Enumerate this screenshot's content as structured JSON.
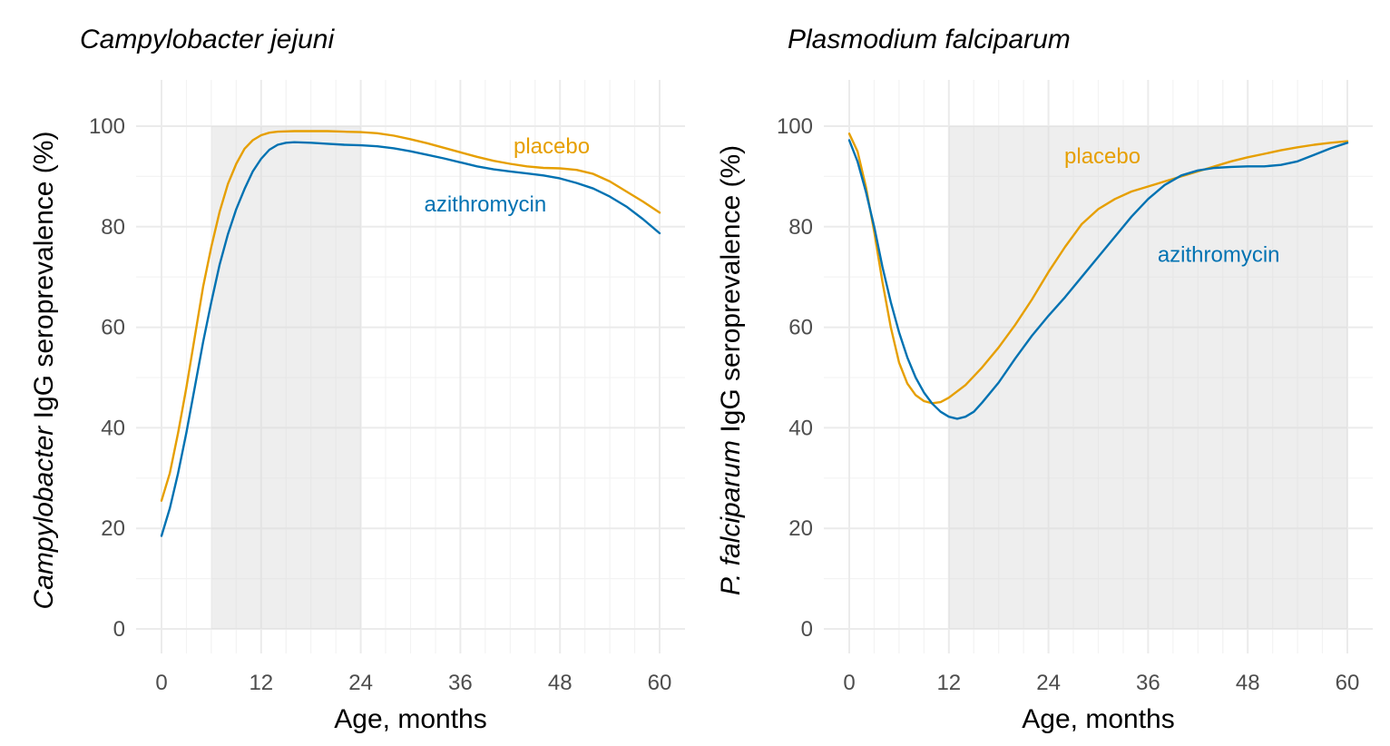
{
  "colors": {
    "placebo": "#E69F00",
    "azithromycin": "#0072B2"
  },
  "chart_data": [
    {
      "type": "line",
      "title": "Campylobacter jejuni",
      "ylabel_italic": "Campylobacter",
      "ylabel_rest": " IgG seroprevalence (%)",
      "xlabel": "Age, months",
      "xlim": [
        0,
        60
      ],
      "ylim": [
        0,
        100
      ],
      "xticks": [
        0,
        12,
        24,
        36,
        48,
        60
      ],
      "yticks": [
        0,
        20,
        40,
        60,
        80,
        100
      ],
      "grid": true,
      "shaded_region": [
        6,
        24
      ],
      "series": [
        {
          "name": "placebo",
          "label_at": [
            47,
            96
          ],
          "points": [
            [
              0,
              25.5
            ],
            [
              1,
              31
            ],
            [
              2,
              39
            ],
            [
              3,
              48
            ],
            [
              4,
              58
            ],
            [
              5,
              68
            ],
            [
              6,
              76
            ],
            [
              7,
              83
            ],
            [
              8,
              88.5
            ],
            [
              9,
              92.5
            ],
            [
              10,
              95.5
            ],
            [
              11,
              97.2
            ],
            [
              12,
              98.2
            ],
            [
              13,
              98.7
            ],
            [
              14,
              98.9
            ],
            [
              16,
              99
            ],
            [
              18,
              99
            ],
            [
              20,
              99
            ],
            [
              22,
              98.9
            ],
            [
              24,
              98.8
            ],
            [
              26,
              98.6
            ],
            [
              28,
              98.1
            ],
            [
              30,
              97.4
            ],
            [
              32,
              96.6
            ],
            [
              34,
              95.7
            ],
            [
              36,
              94.8
            ],
            [
              38,
              93.9
            ],
            [
              40,
              93.1
            ],
            [
              42,
              92.5
            ],
            [
              44,
              92
            ],
            [
              46,
              91.7
            ],
            [
              48,
              91.6
            ],
            [
              50,
              91.3
            ],
            [
              52,
              90.5
            ],
            [
              54,
              89
            ],
            [
              56,
              87
            ],
            [
              58,
              85
            ],
            [
              60,
              82.8
            ]
          ]
        },
        {
          "name": "azithromycin",
          "label_at": [
            39,
            84.5
          ],
          "points": [
            [
              0,
              18.5
            ],
            [
              1,
              24
            ],
            [
              2,
              31
            ],
            [
              3,
              39
            ],
            [
              4,
              48
            ],
            [
              5,
              57
            ],
            [
              6,
              65
            ],
            [
              7,
              72.5
            ],
            [
              8,
              78.5
            ],
            [
              9,
              83.5
            ],
            [
              10,
              87.5
            ],
            [
              11,
              91
            ],
            [
              12,
              93.5
            ],
            [
              13,
              95.3
            ],
            [
              14,
              96.3
            ],
            [
              15,
              96.7
            ],
            [
              16,
              96.8
            ],
            [
              18,
              96.7
            ],
            [
              20,
              96.5
            ],
            [
              22,
              96.3
            ],
            [
              24,
              96.2
            ],
            [
              26,
              96
            ],
            [
              28,
              95.6
            ],
            [
              30,
              95
            ],
            [
              32,
              94.3
            ],
            [
              34,
              93.6
            ],
            [
              36,
              92.8
            ],
            [
              38,
              92
            ],
            [
              40,
              91.4
            ],
            [
              42,
              91
            ],
            [
              44,
              90.6
            ],
            [
              46,
              90.2
            ],
            [
              48,
              89.6
            ],
            [
              50,
              88.7
            ],
            [
              52,
              87.6
            ],
            [
              54,
              86
            ],
            [
              56,
              84
            ],
            [
              58,
              81.5
            ],
            [
              60,
              78.7
            ]
          ]
        }
      ]
    },
    {
      "type": "line",
      "title": "Plasmodium falciparum",
      "ylabel_italic": "P. falciparum",
      "ylabel_rest": " IgG seroprevalence (%)",
      "xlabel": "Age, months",
      "xlim": [
        0,
        60
      ],
      "ylim": [
        0,
        100
      ],
      "xticks": [
        0,
        12,
        24,
        36,
        48,
        60
      ],
      "yticks": [
        0,
        20,
        40,
        60,
        80,
        100
      ],
      "grid": true,
      "shaded_region": [
        12,
        60
      ],
      "series": [
        {
          "name": "placebo",
          "label_at": [
            30.5,
            94
          ],
          "points": [
            [
              0,
              98.5
            ],
            [
              1,
              95
            ],
            [
              2,
              88
            ],
            [
              3,
              79
            ],
            [
              4,
              69
            ],
            [
              5,
              60
            ],
            [
              6,
              53
            ],
            [
              7,
              48.8
            ],
            [
              8,
              46.5
            ],
            [
              9,
              45.3
            ],
            [
              10,
              44.9
            ],
            [
              11,
              45.1
            ],
            [
              12,
              46
            ],
            [
              14,
              48.5
            ],
            [
              16,
              52
            ],
            [
              18,
              56
            ],
            [
              20,
              60.5
            ],
            [
              22,
              65.5
            ],
            [
              24,
              71
            ],
            [
              26,
              76
            ],
            [
              28,
              80.5
            ],
            [
              30,
              83.5
            ],
            [
              32,
              85.5
            ],
            [
              34,
              87
            ],
            [
              36,
              88
            ],
            [
              38,
              89
            ],
            [
              40,
              90
            ],
            [
              42,
              91
            ],
            [
              44,
              92
            ],
            [
              46,
              93
            ],
            [
              48,
              93.8
            ],
            [
              50,
              94.5
            ],
            [
              52,
              95.2
            ],
            [
              54,
              95.8
            ],
            [
              56,
              96.3
            ],
            [
              58,
              96.7
            ],
            [
              60,
              97
            ]
          ]
        },
        {
          "name": "azithromycin",
          "label_at": [
            44.5,
            74.5
          ],
          "points": [
            [
              0,
              97.2
            ],
            [
              1,
              93
            ],
            [
              2,
              87
            ],
            [
              3,
              80
            ],
            [
              4,
              72
            ],
            [
              5,
              65
            ],
            [
              6,
              59
            ],
            [
              7,
              54
            ],
            [
              8,
              50
            ],
            [
              9,
              47
            ],
            [
              10,
              44.8
            ],
            [
              11,
              43.2
            ],
            [
              12,
              42.2
            ],
            [
              13,
              41.8
            ],
            [
              14,
              42.2
            ],
            [
              15,
              43.2
            ],
            [
              16,
              45
            ],
            [
              18,
              49
            ],
            [
              20,
              53.8
            ],
            [
              22,
              58.3
            ],
            [
              24,
              62.3
            ],
            [
              26,
              66
            ],
            [
              28,
              70
            ],
            [
              30,
              74
            ],
            [
              32,
              78
            ],
            [
              34,
              82
            ],
            [
              36,
              85.5
            ],
            [
              38,
              88.3
            ],
            [
              40,
              90.2
            ],
            [
              42,
              91.2
            ],
            [
              44,
              91.7
            ],
            [
              46,
              91.9
            ],
            [
              48,
              92
            ],
            [
              50,
              92
            ],
            [
              52,
              92.3
            ],
            [
              54,
              93
            ],
            [
              56,
              94.3
            ],
            [
              58,
              95.6
            ],
            [
              60,
              96.7
            ]
          ]
        }
      ]
    }
  ]
}
